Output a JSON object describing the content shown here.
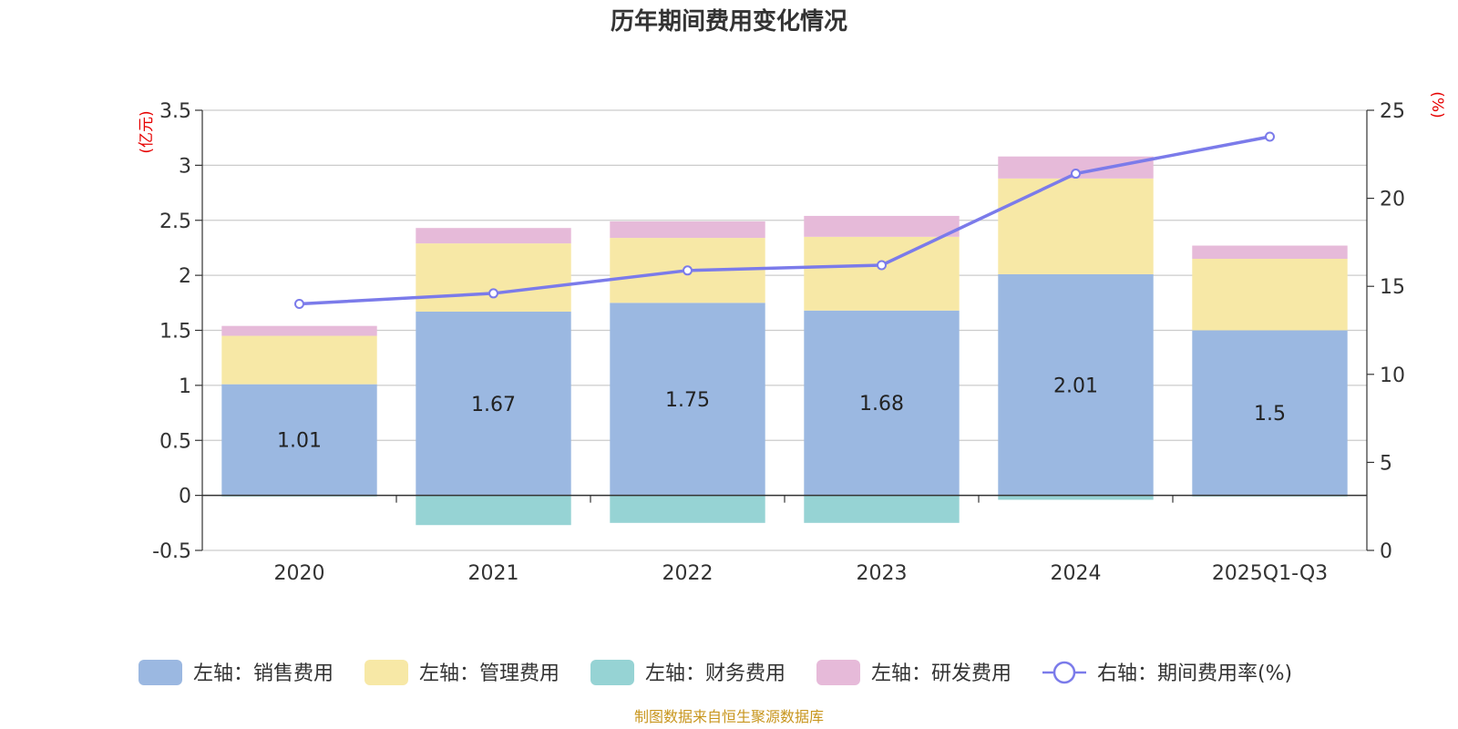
{
  "chart_data": {
    "type": "bar",
    "title": "历年期间费用变化情况",
    "categories": [
      "2020",
      "2021",
      "2022",
      "2023",
      "2024",
      "2025Q1-Q3"
    ],
    "series": [
      {
        "name": "左轴：销售费用",
        "axis": "left",
        "color": "#9bb8e1",
        "values": [
          1.01,
          1.67,
          1.75,
          1.68,
          2.01,
          1.5
        ]
      },
      {
        "name": "左轴：管理费用",
        "axis": "left",
        "color": "#f7e8a6",
        "values": [
          0.44,
          0.62,
          0.59,
          0.67,
          0.87,
          0.65
        ]
      },
      {
        "name": "左轴：财务费用",
        "axis": "left",
        "color": "#96d3d4",
        "values": [
          -0.01,
          -0.27,
          -0.25,
          -0.25,
          -0.04,
          -0.01
        ]
      },
      {
        "name": "左轴：研发费用",
        "axis": "left",
        "color": "#e6bad9",
        "values": [
          0.09,
          0.14,
          0.15,
          0.19,
          0.2,
          0.12
        ]
      },
      {
        "name": "右轴：期间费用率(%)",
        "axis": "right",
        "type": "line",
        "color": "#7b7bea",
        "values": [
          14.0,
          14.6,
          15.9,
          16.2,
          21.4,
          23.5
        ]
      }
    ],
    "left_axis": {
      "unit": "(亿元)",
      "min": -0.5,
      "max": 3.5,
      "ticks": [
        "-0.5",
        "0",
        "0.5",
        "1",
        "1.5",
        "2",
        "2.5",
        "3",
        "3.5"
      ]
    },
    "right_axis": {
      "unit": "(%)",
      "min": 0,
      "max": 25,
      "ticks": [
        "0",
        "5",
        "10",
        "15",
        "20",
        "25"
      ]
    },
    "bar_labels": [
      "1.01",
      "1.67",
      "1.75",
      "1.68",
      "2.01",
      "1.5"
    ],
    "grid": true,
    "legend_position": "bottom",
    "source": "制图数据来自恒生聚源数据库"
  }
}
